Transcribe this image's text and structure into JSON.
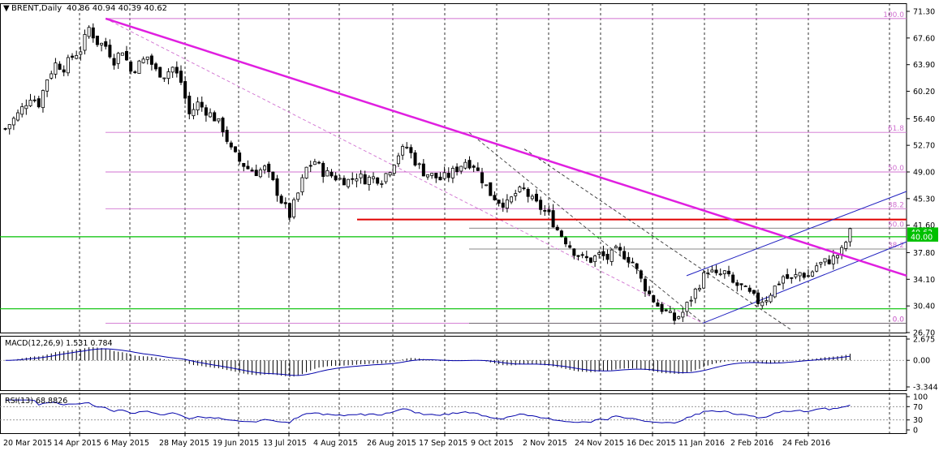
{
  "header": {
    "symbol_label": "BRENT,Daily",
    "ohlc_values": "40.86 40.94 40.39 40.62"
  },
  "colors": {
    "background": "#ffffff",
    "candle": "#000000",
    "grid": "#000000",
    "main_trendline": "#e01fe0",
    "fibo": "#d070d0",
    "fibo_label": "#d070d0",
    "resistance": "#e00000",
    "support": "#00c000",
    "channel": "#2020c0",
    "macd_line": "#0000aa",
    "rsi_line": "#0000aa",
    "price_tag_bg": "#00c000",
    "price_tag_text": "#ffffff"
  },
  "chart_data": [
    {
      "type": "candlestick",
      "panel": "price",
      "y_ticks": [
        "71.30",
        "67.60",
        "63.90",
        "60.20",
        "56.40",
        "52.70",
        "49.00",
        "45.30",
        "41.60",
        "37.80",
        "34.10",
        "30.40",
        "26.70"
      ],
      "ylim": [
        26.7,
        71.3
      ],
      "x_ticks": [
        "20 Mar 2015",
        "14 Apr 2015",
        "6 May 2015",
        "28 May 2015",
        "19 Jun 2015",
        "13 Jul 2015",
        "4 Aug 2015",
        "26 Aug 2015",
        "17 Sep 2015",
        "9 Oct 2015",
        "2 Nov 2015",
        "24 Nov 2015",
        "16 Dec 2015",
        "11 Jan 2016",
        "2 Feb 2016",
        "24 Feb 2016"
      ],
      "price_path": [
        [
          0,
          55.0
        ],
        [
          3,
          57.0
        ],
        [
          6,
          59.5
        ],
        [
          8,
          58.5
        ],
        [
          10,
          62.0
        ],
        [
          12,
          64.0
        ],
        [
          14,
          63.5
        ],
        [
          16,
          65.0
        ],
        [
          18,
          66.0
        ],
        [
          20,
          69.0
        ],
        [
          22,
          67.0
        ],
        [
          24,
          66.5
        ],
        [
          26,
          64.5
        ],
        [
          28,
          66.0
        ],
        [
          30,
          63.0
        ],
        [
          32,
          64.0
        ],
        [
          34,
          65.0
        ],
        [
          36,
          63.0
        ],
        [
          38,
          62.5
        ],
        [
          40,
          63.5
        ],
        [
          42,
          61.5
        ],
        [
          44,
          57.0
        ],
        [
          46,
          58.5
        ],
        [
          48,
          57.5
        ],
        [
          50,
          56.5
        ],
        [
          52,
          55.0
        ],
        [
          54,
          52.0
        ],
        [
          56,
          50.5
        ],
        [
          58,
          49.5
        ],
        [
          60,
          49.0
        ],
        [
          62,
          49.5
        ],
        [
          64,
          47.5
        ],
        [
          66,
          45.0
        ],
        [
          68,
          43.0
        ],
        [
          70,
          46.0
        ],
        [
          72,
          49.5
        ],
        [
          74,
          50.5
        ],
        [
          76,
          49.0
        ],
        [
          78,
          48.5
        ],
        [
          80,
          48.0
        ],
        [
          82,
          47.8
        ],
        [
          84,
          48.5
        ],
        [
          86,
          48.0
        ],
        [
          88,
          48.2
        ],
        [
          90,
          48.0
        ],
        [
          92,
          49.5
        ],
        [
          94,
          51.5
        ],
        [
          96,
          52.5
        ],
        [
          98,
          50.5
        ],
        [
          100,
          49.0
        ],
        [
          102,
          48.5
        ],
        [
          104,
          48.0
        ],
        [
          106,
          48.5
        ],
        [
          108,
          49.5
        ],
        [
          110,
          50.5
        ],
        [
          112,
          50.0
        ],
        [
          114,
          48.0
        ],
        [
          116,
          46.0
        ],
        [
          118,
          45.0
        ],
        [
          120,
          44.5
        ],
        [
          122,
          46.0
        ],
        [
          124,
          46.5
        ],
        [
          126,
          45.0
        ],
        [
          128,
          44.0
        ],
        [
          130,
          43.0
        ],
        [
          132,
          41.0
        ],
        [
          134,
          39.5
        ],
        [
          136,
          38.0
        ],
        [
          138,
          37.0
        ],
        [
          140,
          36.8
        ],
        [
          142,
          37.5
        ],
        [
          144,
          37.0
        ],
        [
          146,
          38.0
        ],
        [
          148,
          37.5
        ],
        [
          150,
          36.5
        ],
        [
          152,
          34.0
        ],
        [
          154,
          32.0
        ],
        [
          156,
          30.5
        ],
        [
          158,
          29.5
        ],
        [
          160,
          28.5
        ],
        [
          162,
          29.5
        ],
        [
          164,
          31.5
        ],
        [
          166,
          33.5
        ],
        [
          168,
          35.5
        ],
        [
          170,
          34.5
        ],
        [
          172,
          35.0
        ],
        [
          174,
          33.5
        ],
        [
          176,
          33.0
        ],
        [
          178,
          32.0
        ],
        [
          180,
          31.0
        ],
        [
          182,
          31.5
        ],
        [
          184,
          33.0
        ],
        [
          186,
          34.5
        ],
        [
          188,
          34.0
        ],
        [
          190,
          35.0
        ],
        [
          192,
          34.5
        ],
        [
          194,
          36.0
        ],
        [
          196,
          36.5
        ],
        [
          198,
          37.0
        ],
        [
          200,
          38.0
        ],
        [
          202,
          40.6
        ]
      ],
      "fibonacci_levels": [
        {
          "label": "100.0",
          "value": 70.3
        },
        {
          "label": "61.8",
          "value": 54.5
        },
        {
          "label": "50.0",
          "value": 49.0
        },
        {
          "label": "38.2",
          "value": 43.9
        },
        {
          "label": "0.0",
          "value": 28.0
        }
      ],
      "fibonacci_levels_2": [
        {
          "label": "50.0",
          "value": 41.2
        },
        {
          "label": "38.2",
          "value": 38.3
        },
        {
          "label": "0.0",
          "value": 28.0
        }
      ],
      "resistance_level": 42.4,
      "support_levels": [
        {
          "label": "40.00",
          "value": 40.0
        },
        {
          "label": "30.00",
          "value": 30.0
        }
      ],
      "main_trendline": {
        "from": [
          24,
          70.3
        ],
        "to": [
          230,
          34.6
        ]
      },
      "current_price_tags": [
        {
          "label": "40.62",
          "value": 40.62
        },
        {
          "label": "40.00",
          "value": 40.0
        }
      ]
    },
    {
      "type": "histogram-line",
      "panel": "macd",
      "label": "MACD(12,26,9) 1.531 0.784",
      "y_ticks": [
        "2.675",
        "0.00",
        "-3.344"
      ],
      "ylim": [
        -3.344,
        2.675
      ]
    },
    {
      "type": "line",
      "panel": "rsi",
      "label": "RSI(13) 68.8826",
      "y_ticks": [
        "100",
        "70",
        "30",
        "0"
      ],
      "ylim": [
        0,
        100
      ],
      "levels": [
        70,
        30
      ]
    }
  ]
}
